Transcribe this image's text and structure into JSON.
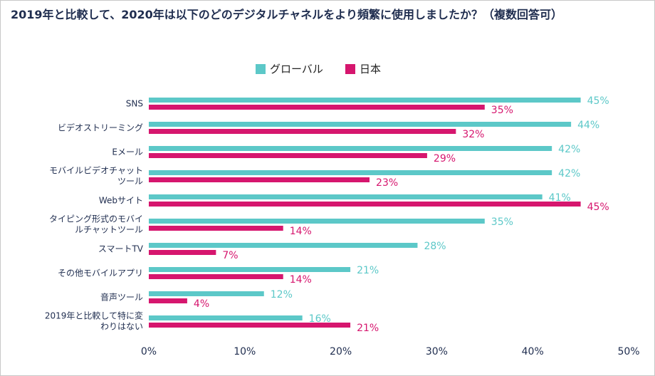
{
  "chart_data": {
    "type": "bar",
    "orientation": "horizontal",
    "title": "2019年と比較して、2020年は以下のどのデジタルチャネルをより頻繁に使用しましたか？（複数回答可）",
    "categories": [
      [
        "SNS"
      ],
      [
        "ビデオストリーミング"
      ],
      [
        "Eメール"
      ],
      [
        "モバイルビデオチャット",
        "ツール"
      ],
      [
        "Webサイト"
      ],
      [
        "タイピング形式のモバイ",
        "ルチャットツール"
      ],
      [
        "スマートTV"
      ],
      [
        "その他モバイルアプリ"
      ],
      [
        "音声ツール"
      ],
      [
        "2019年と比較して特に変",
        "わりはない"
      ]
    ],
    "series": [
      {
        "name": "グローバル",
        "color": "#5cc8c8",
        "values": [
          45,
          44,
          42,
          42,
          41,
          35,
          28,
          21,
          12,
          16
        ],
        "labels": [
          "45%",
          "44%",
          "42%",
          "42%",
          "41%",
          "35%",
          "28%",
          "21%",
          "12%",
          "16%"
        ]
      },
      {
        "name": "日本",
        "color": "#d6166e",
        "values": [
          35,
          32,
          29,
          23,
          45,
          14,
          7,
          14,
          4,
          21
        ],
        "labels": [
          "35%",
          "32%",
          "29%",
          "23%",
          "45%",
          "14%",
          "7%",
          "14%",
          "4%",
          "21%"
        ]
      }
    ],
    "xlim": [
      0,
      50
    ],
    "xticks": [
      "0%",
      "10%",
      "20%",
      "30%",
      "40%",
      "50%"
    ],
    "legend": "top-center",
    "grid": false
  }
}
